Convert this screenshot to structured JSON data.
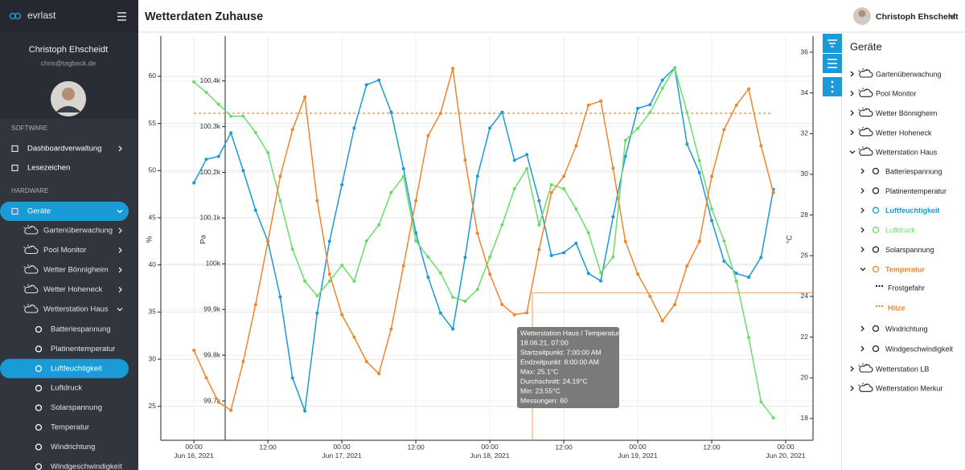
{
  "user": {
    "name": "Christoph Ehscheidt",
    "email": "chris@tagback.de"
  },
  "sidebar": {
    "brand": "evrlast",
    "sections": [
      {
        "title": "SOFTWARE",
        "items": [
          "Dashboardverwaltung",
          "Lesezeichen"
        ]
      },
      {
        "title": "HARDWARE",
        "items": [
          "Geräte"
        ]
      }
    ]
  },
  "header": {
    "title": "Wetterdaten Zuhause"
  },
  "devices": [
    "Gartenüberwachung",
    "Pool Monitor",
    "Wetter Bönnigheim",
    "Wetter Hoheneck",
    "Wetterstation Haus",
    "Wetterstation LB",
    "Wetterstation Merkur"
  ],
  "sensors": [
    "Batteriespannung",
    "Platinentemperatur",
    "Luftfeuchtigkeit",
    "Luftdruck",
    "Solarspannung",
    "Temperatur",
    "Windrichtung",
    "Windgeschwindigkeit"
  ],
  "device_tree": {
    "title": "Geräte"
  },
  "chart_data": {
    "type": "line",
    "x": [
      "2021-06-16T00:00",
      "2021-06-16T02:00",
      "2021-06-16T04:00",
      "2021-06-16T06:00",
      "2021-06-16T08:00",
      "2021-06-16T10:00",
      "2021-06-16T12:00",
      "2021-06-16T14:00",
      "2021-06-16T16:00",
      "2021-06-16T18:00",
      "2021-06-16T20:00",
      "2021-06-16T22:00",
      "2021-06-17T00:00",
      "2021-06-17T02:00",
      "2021-06-17T04:00",
      "2021-06-17T06:00",
      "2021-06-17T08:00",
      "2021-06-17T10:00",
      "2021-06-17T12:00",
      "2021-06-17T14:00",
      "2021-06-17T16:00",
      "2021-06-17T18:00",
      "2021-06-17T20:00",
      "2021-06-17T22:00",
      "2021-06-18T00:00",
      "2021-06-18T02:00",
      "2021-06-18T04:00",
      "2021-06-18T06:00",
      "2021-06-18T08:00",
      "2021-06-18T10:00",
      "2021-06-18T12:00",
      "2021-06-18T14:00",
      "2021-06-18T16:00",
      "2021-06-18T18:00",
      "2021-06-18T20:00",
      "2021-06-18T22:00",
      "2021-06-19T00:00",
      "2021-06-19T02:00",
      "2021-06-19T04:00",
      "2021-06-19T06:00",
      "2021-06-19T08:00",
      "2021-06-19T10:00",
      "2021-06-19T12:00",
      "2021-06-19T14:00",
      "2021-06-19T16:00",
      "2021-06-19T18:00",
      "2021-06-19T20:00",
      "2021-06-19T22:00"
    ],
    "series": [
      {
        "name": "Luftfeuchtigkeit",
        "color": "#1a9bd7",
        "axis": "y",
        "values": [
          48.7,
          51.2,
          51.5,
          54.0,
          50.0,
          45.8,
          42.5,
          36.6,
          28.0,
          24.5,
          34.9,
          42.5,
          48.5,
          54.5,
          59.1,
          59.6,
          56.2,
          50.2,
          43.4,
          38.7,
          34.9,
          33.2,
          40.8,
          49.4,
          54.5,
          56.2,
          51.1,
          51.7,
          46.8,
          41.0,
          41.3,
          42.3,
          39.1,
          38.3,
          45.1,
          51.5,
          56.6,
          57.0,
          59.6,
          60.9,
          52.8,
          49.8,
          44.7,
          40.4,
          39.1,
          38.7,
          40.8,
          48.0
        ]
      },
      {
        "name": "Luftdruck",
        "color": "#6bdc6b",
        "axis": "y3",
        "values": [
          100398,
          100375,
          100349,
          100323,
          100323,
          100287,
          100243,
          100138,
          100032,
          99962,
          99930,
          99962,
          99997,
          99962,
          100050,
          100085,
          100156,
          100191,
          100050,
          100015,
          99980,
          99927,
          99918,
          99944,
          100015,
          100085,
          100164,
          100208,
          100085,
          100173,
          100164,
          100120,
          100068,
          99980,
          100015,
          100270,
          100296,
          100331,
          100384,
          100428,
          100331,
          100226,
          100120,
          100050,
          99962,
          99839,
          99698,
          99663
        ]
      },
      {
        "name": "Temperatur",
        "color": "#f0852d",
        "axis": "y2",
        "values": [
          21.35,
          20.0,
          18.8,
          18.4,
          20.8,
          23.6,
          26.7,
          29.9,
          32.2,
          33.8,
          28.7,
          25.1,
          23.1,
          22.0,
          20.8,
          20.2,
          22.4,
          25.5,
          28.7,
          31.9,
          33.0,
          35.2,
          30.7,
          27.1,
          25.1,
          23.6,
          23.1,
          23.2,
          26.3,
          29.1,
          29.9,
          31.4,
          33.4,
          33.6,
          30.3,
          26.7,
          25.1,
          24.0,
          22.8,
          23.6,
          25.5,
          26.7,
          29.9,
          32.2,
          33.4,
          34.2,
          31.4,
          29.1
        ]
      }
    ],
    "thresholds": [
      {
        "name": "Frostgefahr",
        "color": "#222222"
      },
      {
        "name": "Hitze",
        "color": "#f0852d",
        "value": 33
      }
    ],
    "xlim": [
      "2021-06-15T18:38",
      "2021-06-20T04:26"
    ],
    "xticks": [
      {
        "value": "2021-06-16T00:00",
        "label": "00:00\nJun 16, 2021"
      },
      {
        "value": "2021-06-16T12:00",
        "label": "12:00"
      },
      {
        "value": "2021-06-17T00:00",
        "label": "00:00\nJun 17, 2021"
      },
      {
        "value": "2021-06-17T12:00",
        "label": "12:00"
      },
      {
        "value": "2021-06-18T00:00",
        "label": "00:00\nJun 18, 2021"
      },
      {
        "value": "2021-06-18T12:00",
        "label": "12:00"
      },
      {
        "value": "2021-06-19T00:00",
        "label": "00:00\nJun 19, 2021"
      },
      {
        "value": "2021-06-19T12:00",
        "label": "12:00"
      },
      {
        "value": "2021-06-20T00:00",
        "label": "00:00\nJun 20, 2021"
      }
    ],
    "ylabel": "%",
    "ylim": [
      21.4,
      64.26
    ],
    "yticks": [
      25,
      30,
      35,
      40,
      45,
      50,
      55,
      60
    ],
    "y3label": "Pa",
    "y3lim": [
      99614,
      100498
    ],
    "y3ticks": [
      {
        "value": 99700,
        "label": "99,7k"
      },
      {
        "value": 99800,
        "label": "99,8k"
      },
      {
        "value": 99900,
        "label": "99,9k"
      },
      {
        "value": 100000,
        "label": "100k"
      },
      {
        "value": 100100,
        "label": "100,1k"
      },
      {
        "value": 100200,
        "label": "100,2k"
      },
      {
        "value": 100300,
        "label": "100,3k"
      },
      {
        "value": 100400,
        "label": "100,4k"
      }
    ],
    "y2label": "°C",
    "y2lim": [
      16.93,
      36.79
    ],
    "y2ticks": [
      18,
      20,
      22,
      24,
      26,
      28,
      30,
      32,
      34,
      36
    ],
    "grid": true
  },
  "tooltip": {
    "lines": [
      "Wetterstation Haus / Temperatur",
      "18.06.21, 07:00",
      "Startzeitpunkt: 7:00:00 AM",
      "Endzeitpunkt: 8:00:00 AM",
      "Max: 25.1°C",
      "Durchschnitt: 24.19°C",
      "Min: 23.55°C",
      "Messungen: 60"
    ]
  }
}
